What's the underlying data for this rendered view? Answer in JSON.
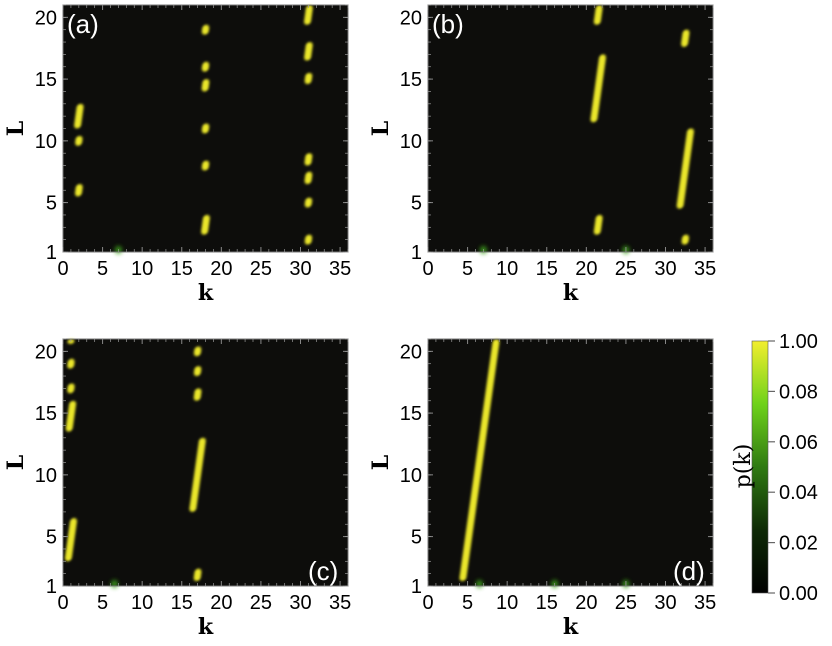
{
  "chart_data": [
    {
      "type": "heatmap",
      "panel_label": "(a)",
      "xlabel": "k",
      "ylabel": "L",
      "xlim": [
        0,
        36
      ],
      "ylim": [
        1,
        21
      ],
      "xticks": [
        "0",
        "5",
        "10",
        "15",
        "20",
        "25",
        "30",
        "35"
      ],
      "yticks": [
        "1",
        "5",
        "10",
        "15",
        "20"
      ],
      "bands": [
        {
          "k": 2,
          "L": [
            11,
            13
          ]
        },
        {
          "k": 2,
          "L": [
            9.6,
            10.4
          ]
        },
        {
          "k": 2,
          "L": [
            5.5,
            6.5
          ]
        },
        {
          "k": 18,
          "L": [
            18.6,
            19.4
          ]
        },
        {
          "k": 18,
          "L": [
            15.6,
            16.4
          ]
        },
        {
          "k": 18,
          "L": [
            14,
            15
          ]
        },
        {
          "k": 18,
          "L": [
            10.6,
            11.4
          ]
        },
        {
          "k": 18,
          "L": [
            7.6,
            8.4
          ]
        },
        {
          "k": 18,
          "L": [
            2.4,
            4
          ]
        },
        {
          "k": 31,
          "L": [
            19.4,
            21
          ]
        },
        {
          "k": 31,
          "L": [
            16.5,
            18
          ]
        },
        {
          "k": 31,
          "L": [
            14.6,
            15.5
          ]
        },
        {
          "k": 31,
          "L": [
            8,
            9
          ]
        },
        {
          "k": 31,
          "L": [
            6.5,
            7.5
          ]
        },
        {
          "k": 31,
          "L": [
            4.6,
            5.4
          ]
        },
        {
          "k": 31,
          "L": [
            1.6,
            2.4
          ]
        }
      ],
      "spots": [
        {
          "k": 7,
          "L": 1
        }
      ]
    },
    {
      "type": "heatmap",
      "panel_label": "(b)",
      "xlabel": "k",
      "ylabel": "L",
      "xlim": [
        0,
        36
      ],
      "ylim": [
        1,
        21
      ],
      "xticks": [
        "0",
        "5",
        "10",
        "15",
        "20",
        "25",
        "30",
        "35"
      ],
      "yticks": [
        "1",
        "5",
        "10",
        "15",
        "20"
      ],
      "bands": [
        {
          "k": 21.5,
          "L": [
            19.4,
            21
          ]
        },
        {
          "k": 21.5,
          "L": [
            11.5,
            17
          ]
        },
        {
          "k": 21.5,
          "L": [
            2.4,
            4
          ]
        },
        {
          "k": 32.5,
          "L": [
            17.6,
            19
          ]
        },
        {
          "k": 32.5,
          "L": [
            4.5,
            11
          ]
        },
        {
          "k": 32.5,
          "L": [
            1.6,
            2.4
          ]
        }
      ],
      "spots": [
        {
          "k": 7,
          "L": 1
        },
        {
          "k": 25,
          "L": 1
        }
      ]
    },
    {
      "type": "heatmap",
      "panel_label": "(c)",
      "xlabel": "k",
      "ylabel": "L",
      "xlim": [
        0,
        36
      ],
      "ylim": [
        1,
        21
      ],
      "xticks": [
        "0",
        "5",
        "10",
        "15",
        "20",
        "25",
        "30",
        "35"
      ],
      "yticks": [
        "1",
        "5",
        "10",
        "15",
        "20"
      ],
      "bands": [
        {
          "k": 1,
          "L": [
            20.6,
            21
          ]
        },
        {
          "k": 1,
          "L": [
            18.6,
            19.4
          ]
        },
        {
          "k": 1,
          "L": [
            16.6,
            17.4
          ]
        },
        {
          "k": 1,
          "L": [
            13.5,
            16
          ]
        },
        {
          "k": 1,
          "L": [
            3,
            6.5
          ]
        },
        {
          "k": 17,
          "L": [
            19.6,
            20.4
          ]
        },
        {
          "k": 17,
          "L": [
            18,
            18.8
          ]
        },
        {
          "k": 17,
          "L": [
            16,
            17
          ]
        },
        {
          "k": 17,
          "L": [
            7,
            13
          ]
        },
        {
          "k": 17,
          "L": [
            1.4,
            2.4
          ]
        }
      ],
      "spots": [
        {
          "k": 6.5,
          "L": 1
        }
      ]
    },
    {
      "type": "heatmap",
      "panel_label": "(d)",
      "xlabel": "k",
      "ylabel": "L",
      "xlim": [
        0,
        36
      ],
      "ylim": [
        1,
        21
      ],
      "xticks": [
        "0",
        "5",
        "10",
        "15",
        "20",
        "25",
        "30",
        "35"
      ],
      "yticks": [
        "1",
        "5",
        "10",
        "15",
        "20"
      ],
      "bands": [
        {
          "k": 6.5,
          "L": [
            1.4,
            21
          ]
        }
      ],
      "spots": [
        {
          "k": 6.5,
          "L": 1
        },
        {
          "k": 16,
          "L": 1
        },
        {
          "k": 25,
          "L": 1
        }
      ]
    }
  ],
  "colorbar": {
    "title": "p(k)",
    "tick_labels": [
      "1.00",
      "0.08",
      "0.06",
      "0.04",
      "0.02",
      "0.00"
    ],
    "colors": {
      "low": "#000000",
      "mid": "#2f7a12",
      "high_green": "#7de21b",
      "top": "#f2ee2e"
    }
  }
}
